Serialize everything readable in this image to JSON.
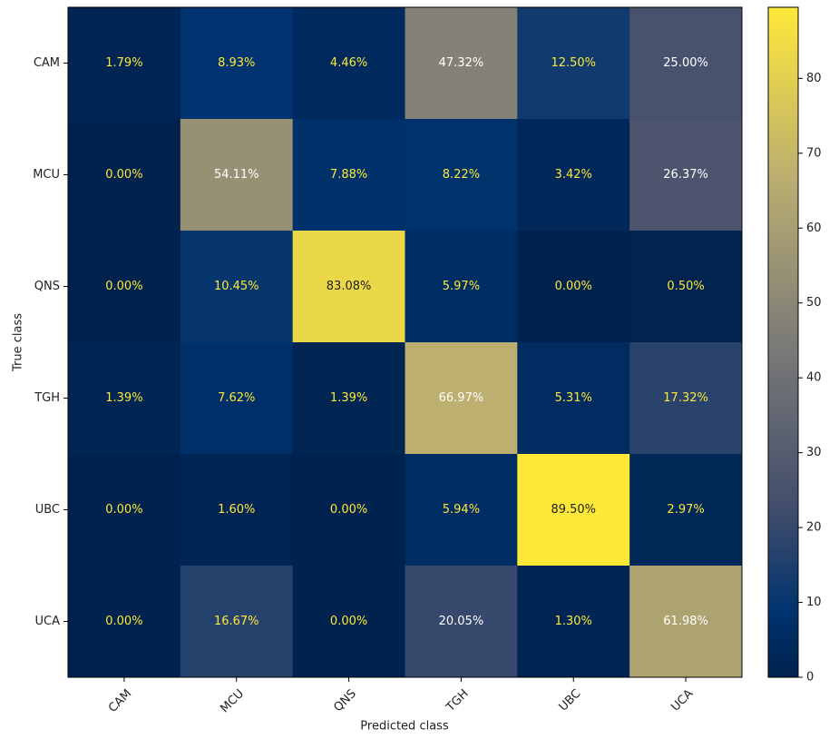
{
  "chart_data": {
    "type": "heatmap",
    "x_label": "Predicted class",
    "y_label": "True class",
    "x_categories": [
      "CAM",
      "MCU",
      "QNS",
      "TGH",
      "UBC",
      "UCA"
    ],
    "y_categories": [
      "CAM",
      "MCU",
      "QNS",
      "TGH",
      "UBC",
      "UCA"
    ],
    "values": [
      [
        1.79,
        8.93,
        4.46,
        47.32,
        12.5,
        25.0
      ],
      [
        0.0,
        54.11,
        7.88,
        8.22,
        3.42,
        26.37
      ],
      [
        0.0,
        10.45,
        83.08,
        5.97,
        0.0,
        0.5
      ],
      [
        1.39,
        7.62,
        1.39,
        66.97,
        5.31,
        17.32
      ],
      [
        0.0,
        1.6,
        0.0,
        5.94,
        89.5,
        2.97
      ],
      [
        0.0,
        16.67,
        0.0,
        20.05,
        1.3,
        61.98
      ]
    ],
    "value_labels": [
      [
        "1.79%",
        "8.93%",
        "4.46%",
        "47.32%",
        "12.50%",
        "25.00%"
      ],
      [
        "0.00%",
        "54.11%",
        "7.88%",
        "8.22%",
        "3.42%",
        "26.37%"
      ],
      [
        "0.00%",
        "10.45%",
        "83.08%",
        "5.97%",
        "0.00%",
        "0.50%"
      ],
      [
        "1.39%",
        "7.62%",
        "1.39%",
        "66.97%",
        "5.31%",
        "17.32%"
      ],
      [
        "0.00%",
        "1.60%",
        "0.00%",
        "5.94%",
        "89.50%",
        "2.97%"
      ],
      [
        "0.00%",
        "16.67%",
        "0.00%",
        "20.05%",
        "1.30%",
        "61.98%"
      ]
    ],
    "colormap": "cividis",
    "zlim": [
      0,
      89.5
    ],
    "colorbar_ticks": [
      0,
      10,
      20,
      30,
      40,
      50,
      60,
      70,
      80
    ]
  }
}
